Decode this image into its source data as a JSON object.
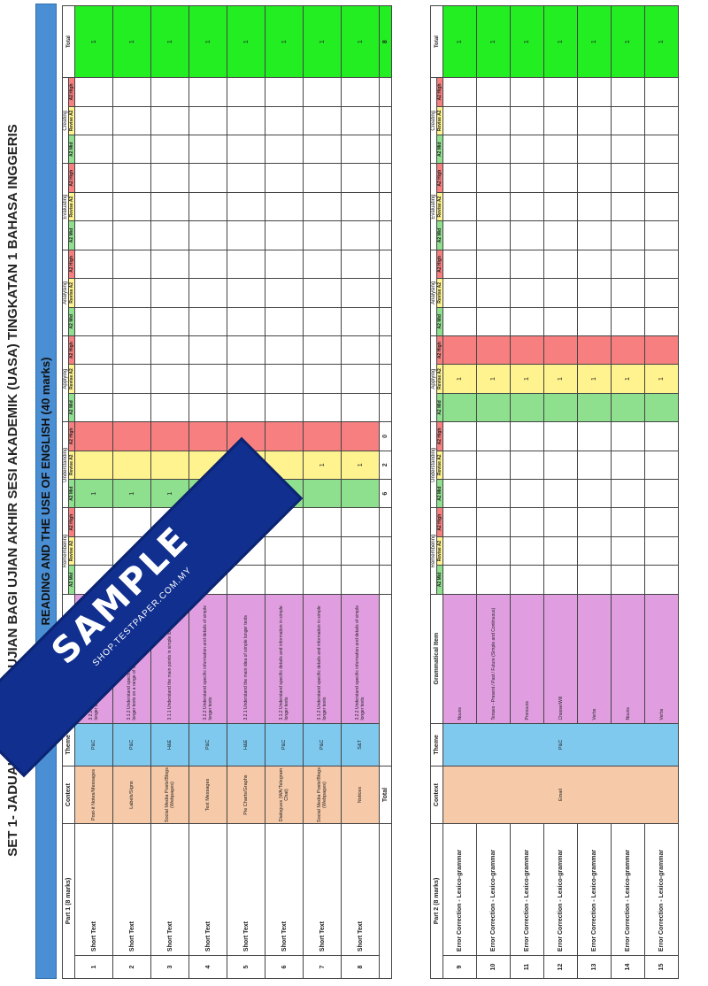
{
  "title": "SET 1- JADUAL SPESIFIKASI UJIAN BAGI UJIAN AKHIR SESI AKADEMIK (UASA) TINGKATAN 1 BAHASA INGGERIS",
  "banner": "READING AND THE USE OF ENGLISH (40 marks)",
  "watermark": {
    "text": "SAMPLE",
    "site": "SHOP.TESTPAPER.COM.MY"
  },
  "categories": [
    "Remembering",
    "Understanding",
    "Applying",
    "Analysing",
    "Evaluating",
    "Creating"
  ],
  "levels": [
    "A2 Mid",
    "Revise A2",
    "A2 High"
  ],
  "total_label": "Total",
  "colors": {
    "mid": "#8ee08e",
    "revise": "#fff38f",
    "high": "#f77f7f",
    "context": "#f6c9a8",
    "theme": "#7fc8ee",
    "standard": "#e09ee0",
    "total": "#22ee22",
    "banner": "#4a8fd4"
  },
  "part1": {
    "header": "Part 1 (8 marks)",
    "col_context": "Context",
    "col_theme": "Theme",
    "col_standard": "Learning Standard",
    "rows": [
      {
        "no": "1",
        "item": "Short Text",
        "context": "Post-it Notes/Messages",
        "theme": "P&C",
        "standard": "3.2.2 Understand specific information and details of simple longer texts",
        "mid": "1",
        "revise": "",
        "total": "1"
      },
      {
        "no": "2",
        "item": "Short Text",
        "context": "Labels/Signs",
        "theme": "P&C",
        "standard": "3.1.2 Understand specific details and information in simple longer texts on a range of familiar topics",
        "mid": "1",
        "revise": "",
        "total": "1"
      },
      {
        "no": "3",
        "item": "Short Text",
        "context": "Social Media Posts/Blogs (Webpages)",
        "theme": "H&E",
        "standard": "3.1.1 Understand the main points in simple longer texts",
        "mid": "1",
        "revise": "",
        "total": "1"
      },
      {
        "no": "4",
        "item": "Short Text",
        "context": "Text Messages",
        "theme": "P&C",
        "standard": "3.2.2 Understand specific information and details of simple longer texts",
        "mid": "1",
        "revise": "",
        "total": "1"
      },
      {
        "no": "5",
        "item": "Short Text",
        "context": "Pie Charts/Graphs",
        "theme": "H&E",
        "standard": "3.2.1 Understand the main idea of simple longer texts",
        "mid": "1",
        "revise": "",
        "total": "1"
      },
      {
        "no": "6",
        "item": "Short Text",
        "context": "Dialogues (WA/Telegram Chat)",
        "theme": "P&C",
        "standard": "3.1.2 Understand specific details and information in simple longer texts",
        "mid": "1",
        "revise": "",
        "total": "1"
      },
      {
        "no": "7",
        "item": "Short Text",
        "context": "Social Media Posts/Blogs (Webpages)",
        "theme": "P&C",
        "standard": "3.1.2 Understand specific details and information in simple longer texts",
        "mid": "",
        "revise": "1",
        "total": "1"
      },
      {
        "no": "8",
        "item": "Short Text",
        "context": "Notices",
        "theme": "S&T",
        "standard": "3.2.2 Understand specific information and details of simple longer texts",
        "mid": "",
        "revise": "1",
        "total": "1"
      }
    ],
    "totals": {
      "label": "Total",
      "mid": "6",
      "revise": "2",
      "high": "0",
      "grand": "8"
    }
  },
  "part2": {
    "header": "Part 2 (8 marks)",
    "col_context": "Context",
    "col_theme": "Theme",
    "col_item": "Grammatical Item",
    "context": "Email",
    "theme": "P&C",
    "rows": [
      {
        "no": "9",
        "item": "Error Correction - Lexico-grammar",
        "gram": "Nouns",
        "mid": "",
        "revise": "1",
        "total": "1"
      },
      {
        "no": "10",
        "item": "Error Correction - Lexico-grammar",
        "gram": "Tenses - Present / Past / Future (Simple and Continuous)",
        "mid": "",
        "revise": "1",
        "total": "1"
      },
      {
        "no": "11",
        "item": "Error Correction - Lexico-grammar",
        "gram": "Pronouns",
        "mid": "",
        "revise": "1",
        "total": "1"
      },
      {
        "no": "12",
        "item": "Error Correction - Lexico-grammar",
        "gram": "Choose/Will",
        "mid": "",
        "revise": "1",
        "total": "1"
      },
      {
        "no": "13",
        "item": "Error Correction - Lexico-grammar",
        "gram": "Verbs",
        "mid": "",
        "revise": "1",
        "total": "1"
      },
      {
        "no": "14",
        "item": "Error Correction - Lexico-grammar",
        "gram": "Nouns",
        "mid": "",
        "revise": "1",
        "total": "1"
      },
      {
        "no": "15",
        "item": "Error Correction - Lexico-grammar",
        "gram": "Verbs",
        "mid": "",
        "revise": "1",
        "total": "1"
      }
    ]
  }
}
